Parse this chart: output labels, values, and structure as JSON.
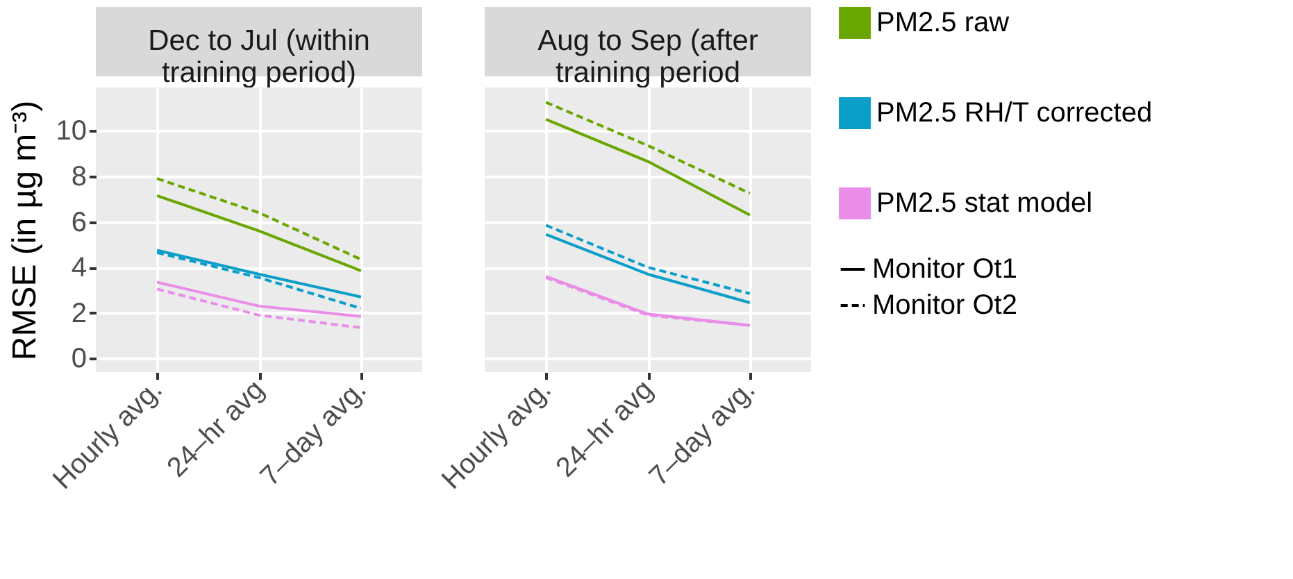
{
  "chart_data": [
    {
      "type": "line",
      "title": "Dec to Jul (within training period)",
      "ylabel": "RMSE (in µg m⁻³)",
      "categories": [
        "Hourly avg.",
        "24–hr avg",
        "7–day avg."
      ],
      "ylim": [
        -0.6,
        11.9
      ],
      "yticks": [
        0,
        2,
        4,
        6,
        8,
        10
      ],
      "grid": true,
      "series": [
        {
          "color": "#6aa600",
          "line_style": "solid",
          "values": [
            7.15,
            5.6,
            3.85
          ]
        },
        {
          "color": "#6aa600",
          "line_style": "dashed",
          "values": [
            7.9,
            6.4,
            4.35
          ]
        },
        {
          "color": "#0b9ec9",
          "line_style": "solid",
          "values": [
            4.75,
            3.7,
            2.7
          ]
        },
        {
          "color": "#0b9ec9",
          "line_style": "dashed",
          "values": [
            4.65,
            3.55,
            2.2
          ]
        },
        {
          "color": "#e98de8",
          "line_style": "solid",
          "values": [
            3.35,
            2.3,
            1.85
          ]
        },
        {
          "color": "#e98de8",
          "line_style": "dashed",
          "values": [
            3.05,
            1.9,
            1.35
          ]
        }
      ]
    },
    {
      "type": "line",
      "title": "Aug to Sep (after training period",
      "categories": [
        "Hourly avg.",
        "24–hr avg",
        "7–day avg."
      ],
      "ylim": [
        -0.6,
        11.9
      ],
      "yticks": [
        0,
        2,
        4,
        6,
        8,
        10
      ],
      "grid": true,
      "tick_labels": "x",
      "legend": "right",
      "annotations": [
        "Monitor Ot1",
        "Monitor Ot2"
      ],
      "series": [
        {
          "name": "PM2.5 raw",
          "color": "#6aa600",
          "line_style": "solid",
          "values": [
            10.5,
            8.65,
            6.3
          ]
        },
        {
          "color": "#6aa600",
          "line_style": "dashed",
          "values": [
            11.25,
            9.35,
            7.25
          ]
        },
        {
          "name": "PM2.5 RH/T corrected",
          "color": "#0b9ec9",
          "line_style": "solid",
          "values": [
            5.45,
            3.7,
            2.45
          ]
        },
        {
          "color": "#0b9ec9",
          "line_style": "dashed",
          "values": [
            5.85,
            4.0,
            2.85
          ]
        },
        {
          "name": "PM2.5 stat model",
          "color": "#e98de8",
          "line_style": "solid",
          "values": [
            3.6,
            1.95,
            1.45
          ]
        },
        {
          "color": "#e98de8",
          "line_style": "dashed",
          "values": [
            3.55,
            1.9,
            1.45
          ]
        }
      ]
    }
  ]
}
